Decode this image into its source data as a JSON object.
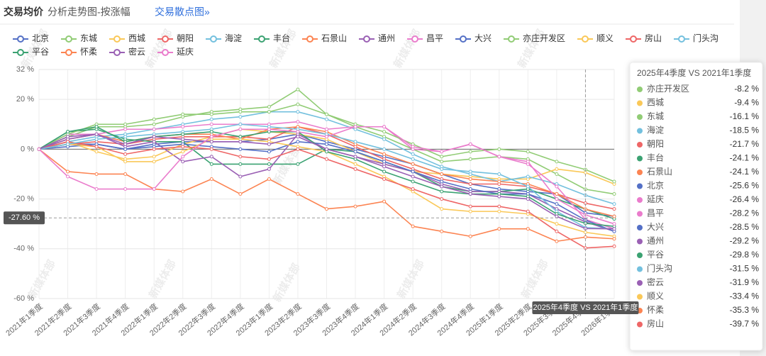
{
  "header": {
    "title": "交易均价",
    "subtitle": "分析走势图-按涨幅",
    "link": "交易散点图»"
  },
  "chart_data": {
    "type": "line",
    "watermark": "新媒体部",
    "categories": [
      "2021年1季度",
      "2021年2季度",
      "2021年3季度",
      "2021年4季度",
      "2022年1季度",
      "2022年2季度",
      "2022年3季度",
      "2022年4季度",
      "2023年1季度",
      "2023年2季度",
      "2023年3季度",
      "2023年4季度",
      "2024年1季度",
      "2024年2季度",
      "2024年3季度",
      "2024年4季度",
      "2025年1季度",
      "2025年2季度",
      "2025年3季度",
      "2025年4季度",
      "2026年1季度"
    ],
    "ylim": [
      -60,
      32
    ],
    "yticks": [
      {
        "value": -60,
        "label": "-60 %"
      },
      {
        "value": -40,
        "label": "-40 %"
      },
      {
        "value": -20,
        "label": "-20 %"
      },
      {
        "value": 0,
        "label": "0 %"
      },
      {
        "value": 20,
        "label": "20 %"
      },
      {
        "value": 32,
        "label": "32 %"
      }
    ],
    "grid": true,
    "pointer": {
      "x_index": 19,
      "x_label": "2025年4季度 VS 2021年1季度",
      "y": {
        "value": -27.6,
        "label": "-27.60 %"
      }
    },
    "series": [
      {
        "name": "北京",
        "color": "#5470c6",
        "values": [
          0,
          2,
          2,
          0,
          2,
          3,
          3,
          3,
          4,
          6,
          3,
          0,
          -3,
          -6,
          -10,
          -14,
          -16,
          -17,
          -18,
          -25.6,
          -27
        ]
      },
      {
        "name": "东城",
        "color": "#91cc75",
        "values": [
          0,
          5,
          9,
          9,
          10,
          13,
          15,
          16,
          17,
          24,
          14,
          9,
          5,
          0,
          -5,
          -4,
          -3,
          -4,
          -10,
          -16.1,
          -18
        ]
      },
      {
        "name": "西城",
        "color": "#fac858",
        "values": [
          0,
          3,
          -1,
          -4,
          -3,
          2,
          5,
          8,
          7,
          6,
          4,
          -1,
          -6,
          -9,
          -10,
          -11,
          -12,
          -12,
          -8,
          -9.4,
          -14
        ]
      },
      {
        "name": "朝阳",
        "color": "#ee6666",
        "values": [
          0,
          2,
          3,
          2,
          4,
          5,
          5,
          5,
          4,
          9,
          6,
          1,
          -4,
          -8,
          -12,
          -14,
          -14,
          -15,
          -18,
          -21.7,
          -24
        ]
      },
      {
        "name": "海淀",
        "color": "#73c0de",
        "values": [
          0,
          3,
          5,
          6,
          8,
          10,
          12,
          13,
          15,
          15,
          12,
          8,
          4,
          -2,
          -7,
          -10,
          -13,
          -11,
          -14,
          -18.5,
          -22
        ]
      },
      {
        "name": "丰台",
        "color": "#3ba272",
        "values": [
          0,
          7,
          8,
          4,
          3,
          3,
          -6,
          -6,
          -6,
          -6,
          0,
          -1,
          -5,
          -9,
          -15,
          -17,
          -17,
          -16,
          -20,
          -24.1,
          -28
        ]
      },
      {
        "name": "石景山",
        "color": "#fc8452",
        "values": [
          0,
          4,
          6,
          3,
          5,
          6,
          6,
          4,
          8,
          9,
          7,
          2,
          -2,
          -6,
          -10,
          -12,
          -13,
          -14,
          -18,
          -24.1,
          -27
        ]
      },
      {
        "name": "通州",
        "color": "#9a60b4",
        "values": [
          0,
          4,
          6,
          1,
          3,
          -5,
          -3,
          -11,
          -8,
          6,
          0,
          -3,
          -6,
          -9,
          -14,
          -17,
          -17,
          -18,
          -24,
          -29.2,
          -33
        ]
      },
      {
        "name": "昌平",
        "color": "#ea7ccc",
        "values": [
          0,
          6,
          6,
          8,
          8,
          9,
          10,
          10,
          10,
          11,
          8,
          9,
          9,
          0,
          -1,
          2,
          -3,
          -6,
          -15,
          -28.2,
          -32
        ]
      },
      {
        "name": "大兴",
        "color": "#5470c6",
        "values": [
          0,
          1,
          2,
          0,
          1,
          2,
          1,
          0,
          -1,
          3,
          2,
          -1,
          -5,
          -9,
          -13,
          -16,
          -18,
          -18,
          -22,
          -28.5,
          -33
        ]
      },
      {
        "name": "亦庄开发区",
        "color": "#91cc75",
        "values": [
          0,
          6,
          10,
          10,
          12,
          14,
          14,
          15,
          15,
          18,
          14,
          10,
          7,
          2,
          -3,
          -1,
          0,
          -1,
          -5,
          -8.2,
          -13
        ]
      },
      {
        "name": "顺义",
        "color": "#fac858",
        "values": [
          0,
          2,
          1,
          -5,
          -5,
          -1,
          4,
          4,
          3,
          1,
          -1,
          -6,
          -11,
          -17,
          -24,
          -25,
          -25,
          -26,
          -30,
          -33.4,
          -35
        ]
      },
      {
        "name": "房山",
        "color": "#ee6666",
        "values": [
          0,
          3,
          1,
          -2,
          0,
          1,
          0,
          -3,
          -4,
          0,
          -4,
          -8,
          -12,
          -16,
          -20,
          -23,
          -23,
          -25,
          -33,
          -39.7,
          -39
        ]
      },
      {
        "name": "门头沟",
        "color": "#73c0de",
        "values": [
          0,
          2,
          4,
          5,
          6,
          7,
          8,
          10,
          9,
          8,
          6,
          3,
          0,
          -4,
          -8,
          -9,
          -10,
          -15,
          -25,
          -31.5,
          -32
        ]
      },
      {
        "name": "平谷",
        "color": "#3ba272",
        "values": [
          0,
          7,
          9,
          3,
          5,
          6,
          7,
          5,
          7,
          7,
          -1,
          -4,
          -9,
          -13,
          -17,
          -18,
          -18,
          -19,
          -26,
          -29.8,
          -31
        ]
      },
      {
        "name": "怀柔",
        "color": "#fc8452",
        "values": [
          0,
          -9,
          -10,
          -10,
          -16,
          -17,
          -12,
          -18,
          -12,
          -18,
          -24,
          -23,
          -21,
          -31,
          -33,
          -35,
          -32,
          -32,
          -37,
          -35.3,
          -36
        ]
      },
      {
        "name": "密云",
        "color": "#9a60b4",
        "values": [
          0,
          5,
          6,
          2,
          5,
          4,
          3,
          3,
          2,
          5,
          0,
          -3,
          -7,
          -11,
          -15,
          -18,
          -19,
          -20,
          -27,
          -31.9,
          -32
        ]
      },
      {
        "name": "延庆",
        "color": "#ea7ccc",
        "values": [
          0,
          -11,
          -16,
          -16,
          -16,
          -3,
          5,
          8,
          8,
          7,
          5,
          9,
          9,
          1,
          -1,
          2,
          -3,
          -5,
          -20,
          -26.4,
          -30
        ]
      }
    ],
    "tooltip": {
      "title": "2025年4季度 VS 2021年1季度",
      "items": [
        {
          "name": "亦庄开发区",
          "color": "#91cc75",
          "value": -8.2,
          "label": "-8.2 %"
        },
        {
          "name": "西城",
          "color": "#fac858",
          "value": -9.4,
          "label": "-9.4 %"
        },
        {
          "name": "东城",
          "color": "#91cc75",
          "value": -16.1,
          "label": "-16.1 %"
        },
        {
          "name": "海淀",
          "color": "#73c0de",
          "value": -18.5,
          "label": "-18.5 %"
        },
        {
          "name": "朝阳",
          "color": "#ee6666",
          "value": -21.7,
          "label": "-21.7 %"
        },
        {
          "name": "丰台",
          "color": "#3ba272",
          "value": -24.1,
          "label": "-24.1 %"
        },
        {
          "name": "石景山",
          "color": "#fc8452",
          "value": -24.1,
          "label": "-24.1 %"
        },
        {
          "name": "北京",
          "color": "#5470c6",
          "value": -25.6,
          "label": "-25.6 %"
        },
        {
          "name": "延庆",
          "color": "#ea7ccc",
          "value": -26.4,
          "label": "-26.4 %"
        },
        {
          "name": "昌平",
          "color": "#ea7ccc",
          "value": -28.2,
          "label": "-28.2 %"
        },
        {
          "name": "大兴",
          "color": "#5470c6",
          "value": -28.5,
          "label": "-28.5 %"
        },
        {
          "name": "通州",
          "color": "#9a60b4",
          "value": -29.2,
          "label": "-29.2 %"
        },
        {
          "name": "平谷",
          "color": "#3ba272",
          "value": -29.8,
          "label": "-29.8 %"
        },
        {
          "name": "门头沟",
          "color": "#73c0de",
          "value": -31.5,
          "label": "-31.5 %"
        },
        {
          "name": "密云",
          "color": "#9a60b4",
          "value": -31.9,
          "label": "-31.9 %"
        },
        {
          "name": "顺义",
          "color": "#fac858",
          "value": -33.4,
          "label": "-33.4 %"
        },
        {
          "name": "怀柔",
          "color": "#fc8452",
          "value": -35.3,
          "label": "-35.3 %"
        },
        {
          "name": "房山",
          "color": "#ee6666",
          "value": -39.7,
          "label": "-39.7 %"
        }
      ]
    }
  }
}
